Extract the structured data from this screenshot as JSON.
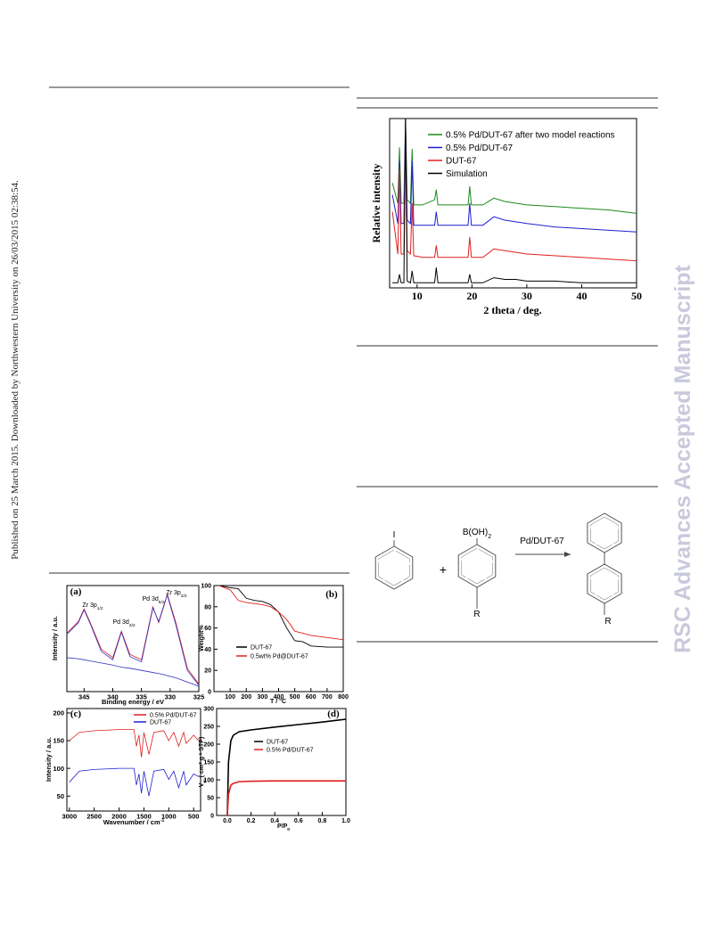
{
  "sidebar": {
    "left": "Published on 25 March 2015. Downloaded by Northwestern University on 26/03/2015 02:38:54.",
    "right": "RSC Advances Accepted Manuscript"
  },
  "scheme": {
    "reactant1": "I",
    "reactant2": [
      {
        "text": "B(OH)"
      },
      {
        "text": "2",
        "sub": true
      }
    ],
    "plus": "+",
    "catalyst": "Pd/DUT-67",
    "substituent": "R",
    "product_substituent": "R"
  },
  "chart_data": [
    {
      "type": "line",
      "x_label": [
        {
          "text": "2 theta / deg."
        }
      ],
      "y_label": [
        {
          "text": "Relative intensity"
        }
      ],
      "xlim": [
        5,
        50
      ],
      "ylim": [
        0,
        100
      ],
      "xticks": [
        10,
        20,
        30,
        40,
        50
      ],
      "x": [
        5.5,
        6.5,
        6.8,
        7.1,
        7.6,
        7.9,
        8.2,
        8.8,
        9.1,
        9.4,
        11,
        13.2,
        13.5,
        13.8,
        16,
        19.3,
        19.6,
        19.9,
        22,
        24,
        26,
        28,
        30,
        35,
        40,
        45,
        50
      ],
      "series": [
        {
          "name": "0.5% Pd/DUT-67 after two model reactions",
          "color": "#1a8a1a",
          "values": [
            62,
            50,
            83,
            50,
            50,
            100,
            52,
            50,
            82,
            49,
            49,
            52,
            58,
            49,
            49,
            49,
            60,
            49,
            49,
            53,
            51,
            50,
            49,
            48,
            47,
            46,
            44
          ]
        },
        {
          "name": "0.5% Pd/DUT-67",
          "color": "#1f1fd0",
          "values": [
            55,
            38,
            75,
            38,
            38,
            100,
            40,
            38,
            75,
            37,
            37,
            37,
            45,
            37,
            37,
            37,
            50,
            37,
            37,
            42,
            40,
            39,
            38,
            36,
            35,
            34,
            33
          ]
        },
        {
          "name": "DUT-67",
          "color": "#e02020",
          "values": [
            45,
            20,
            70,
            20,
            20,
            95,
            22,
            20,
            50,
            19,
            18,
            18,
            25,
            18,
            18,
            18,
            30,
            18,
            18,
            23,
            22,
            21,
            20,
            19,
            18,
            17,
            16
          ]
        },
        {
          "name": "Simulation",
          "color": "#000000",
          "values": [
            3,
            3,
            8,
            3,
            3,
            100,
            4,
            3,
            10,
            3,
            3,
            3,
            12,
            3,
            3,
            3,
            8,
            3,
            3,
            6,
            5,
            5,
            4,
            4,
            3,
            3,
            3
          ]
        }
      ]
    },
    {
      "type": "line",
      "label": "(a)",
      "x_label": [
        {
          "text": "Binding energy / eV"
        }
      ],
      "y_label": [
        {
          "text": "Intensity / a.u."
        }
      ],
      "xlim": [
        348,
        325
      ],
      "ylim": [
        0,
        100
      ],
      "xticks": [
        345,
        340,
        335,
        330,
        325
      ],
      "annotations": [
        [
          {
            "text": "Zr 3p"
          },
          {
            "text": "1/2",
            "sub": true
          }
        ],
        [
          {
            "text": "Pd 3d"
          },
          {
            "text": "3/2",
            "sub": true
          }
        ],
        [
          {
            "text": "Pd 3d"
          },
          {
            "text": "5/2",
            "sub": true
          }
        ],
        [
          {
            "text": "Zr 3p"
          },
          {
            "text": "3/2",
            "sub": true
          }
        ]
      ],
      "x": [
        348,
        346,
        345,
        344,
        342,
        340,
        338.5,
        337,
        335,
        333,
        332,
        331,
        330.5,
        329,
        327,
        325
      ],
      "series": [
        {
          "color": "#e02020",
          "values": [
            55,
            66,
            78,
            66,
            40,
            32,
            57,
            35,
            30,
            80,
            65,
            82,
            92,
            65,
            22,
            7
          ]
        },
        {
          "color": "#3030c0",
          "values": [
            54,
            65,
            77,
            65,
            38,
            30,
            56,
            33,
            28,
            79,
            66,
            83,
            91,
            63,
            20,
            6
          ]
        },
        {
          "color": "#3030c0",
          "values": [
            32,
            31,
            30,
            29,
            27,
            25,
            23,
            22,
            20,
            18,
            17,
            16,
            15,
            13,
            9,
            5
          ]
        }
      ]
    },
    {
      "type": "line",
      "label": "(b)",
      "x_label": [
        {
          "text": "T / °C"
        }
      ],
      "y_label": [
        {
          "text": "Weight%"
        }
      ],
      "xlim": [
        0,
        800
      ],
      "ylim": [
        0,
        100
      ],
      "xticks": [
        100,
        200,
        300,
        400,
        500,
        600,
        700,
        800
      ],
      "yticks": [
        0,
        20,
        40,
        60,
        80,
        100
      ],
      "x": [
        30,
        100,
        150,
        200,
        250,
        300,
        350,
        400,
        450,
        500,
        550,
        600,
        700,
        800
      ],
      "series": [
        {
          "name": "DUT-67",
          "color": "#000000",
          "values": [
            100,
            98,
            97,
            88,
            86,
            85,
            82,
            75,
            60,
            48,
            47,
            43,
            42,
            42
          ]
        },
        {
          "name": "0.5wt% Pd@DUT-67",
          "color": "#e02020",
          "values": [
            100,
            96,
            86,
            84,
            83,
            82,
            80,
            75,
            68,
            57,
            55,
            53,
            51,
            49
          ]
        }
      ]
    },
    {
      "type": "line",
      "label": "(c)",
      "x_label": [
        {
          "text": "Wavenumber / cm"
        },
        {
          "text": "-1",
          "sup": true
        }
      ],
      "y_label": [
        {
          "text": "Intensity / a.u."
        }
      ],
      "xlim": [
        3050,
        360
      ],
      "ylim": [
        23,
        208
      ],
      "xticks": [
        3000,
        2500,
        2000,
        1500,
        1000,
        500
      ],
      "yticks": [
        50,
        100,
        150,
        200
      ],
      "x": [
        3000,
        2800,
        2500,
        2000,
        1700,
        1650,
        1600,
        1550,
        1500,
        1400,
        1300,
        1100,
        1000,
        900,
        800,
        700,
        650,
        500,
        400
      ],
      "series": [
        {
          "name": "0.5% Pd/DUT-67",
          "color": "#e02020",
          "values": [
            150,
            165,
            168,
            170,
            170,
            140,
            160,
            120,
            165,
            125,
            165,
            168,
            150,
            165,
            140,
            165,
            145,
            160,
            150
          ]
        },
        {
          "name": "DUT-67",
          "color": "#2020d0",
          "values": [
            75,
            95,
            98,
            100,
            100,
            70,
            90,
            55,
            95,
            50,
            95,
            98,
            80,
            95,
            65,
            95,
            70,
            90,
            85
          ]
        }
      ]
    },
    {
      "type": "line",
      "label": "(d)",
      "x_label": [
        {
          "text": "P/P"
        },
        {
          "text": "0",
          "sub": true
        }
      ],
      "y_label": [
        {
          "text": "V"
        },
        {
          "text": "m",
          "sub": true
        },
        {
          "text": " ( cm"
        },
        {
          "text": "3",
          "sup": true
        },
        {
          "text": " g"
        },
        {
          "text": "-1",
          "sup": true
        },
        {
          "text": " STP)"
        }
      ],
      "xlim": [
        -0.09,
        1.0
      ],
      "ylim": [
        0,
        300
      ],
      "xticks": [
        {
          "value": 0,
          "label": "0.0"
        },
        0.2,
        0.4,
        0.6,
        0.8,
        {
          "value": 1,
          "label": "1.0"
        }
      ],
      "yticks": [
        0,
        50,
        100,
        150,
        200,
        250,
        300
      ],
      "x": [
        0,
        0.01,
        0.03,
        0.05,
        0.1,
        0.2,
        0.4,
        0.6,
        0.8,
        1.0
      ],
      "series": [
        {
          "name": "DUT-67",
          "color": "#000000",
          "values": [
            0,
            150,
            210,
            225,
            235,
            240,
            248,
            255,
            262,
            270
          ]
        },
        {
          "name": "0.5% Pd/DUT-67",
          "color": "#e02020",
          "values": [
            0,
            60,
            85,
            90,
            95,
            96,
            97,
            97,
            97,
            97
          ]
        }
      ]
    }
  ]
}
